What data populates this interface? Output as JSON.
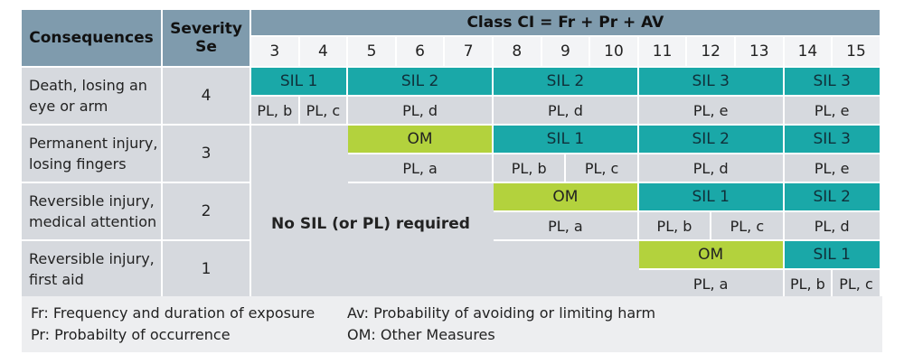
{
  "header": {
    "consequences": "Consequences",
    "severity": "Severity Se",
    "class_title": "Class CI = Fr + Pr + AV",
    "class_numbers": [
      "3",
      "4",
      "5",
      "6",
      "7",
      "8",
      "9",
      "10",
      "11",
      "12",
      "13",
      "14",
      "15"
    ]
  },
  "rows": [
    {
      "consequence": "Death, losing an eye or arm",
      "severity": "4",
      "levels": [
        {
          "from": 3,
          "to": 4,
          "label": "SIL 1",
          "kind": "SIL"
        },
        {
          "from": 5,
          "to": 7,
          "label": "SIL 2",
          "kind": "SIL"
        },
        {
          "from": 8,
          "to": 10,
          "label": "SIL 2",
          "kind": "SIL"
        },
        {
          "from": 11,
          "to": 13,
          "label": "SIL 3",
          "kind": "SIL"
        },
        {
          "from": 14,
          "to": 15,
          "label": "SIL 3",
          "kind": "SIL"
        }
      ],
      "pl": [
        {
          "from": 3,
          "to": 3,
          "label": "PL, b"
        },
        {
          "from": 4,
          "to": 4,
          "label": "PL, c"
        },
        {
          "from": 5,
          "to": 7,
          "label": "PL, d"
        },
        {
          "from": 8,
          "to": 10,
          "label": "PL, d"
        },
        {
          "from": 11,
          "to": 13,
          "label": "PL, e"
        },
        {
          "from": 14,
          "to": 15,
          "label": "PL, e"
        }
      ]
    },
    {
      "consequence": "Permanent injury, losing fingers",
      "severity": "3",
      "levels": [
        {
          "from": 5,
          "to": 7,
          "label": "OM",
          "kind": "OM"
        },
        {
          "from": 8,
          "to": 10,
          "label": "SIL 1",
          "kind": "SIL"
        },
        {
          "from": 11,
          "to": 13,
          "label": "SIL 2",
          "kind": "SIL"
        },
        {
          "from": 14,
          "to": 15,
          "label": "SIL 3",
          "kind": "SIL"
        }
      ],
      "pl": [
        {
          "from": 5,
          "to": 7,
          "label": "PL, a"
        },
        {
          "from": 8,
          "to": 9,
          "label": "PL, b"
        },
        {
          "from": 9,
          "to": 10,
          "label": "PL, c"
        },
        {
          "from": 11,
          "to": 13,
          "label": "PL, d"
        },
        {
          "from": 14,
          "to": 15,
          "label": "PL, e"
        }
      ]
    },
    {
      "consequence": "Reversible injury, medical attention",
      "severity": "2",
      "levels": [
        {
          "from": 8,
          "to": 10,
          "label": "OM",
          "kind": "OM"
        },
        {
          "from": 11,
          "to": 13,
          "label": "SIL 1",
          "kind": "SIL"
        },
        {
          "from": 14,
          "to": 15,
          "label": "SIL 2",
          "kind": "SIL"
        }
      ],
      "pl": [
        {
          "from": 8,
          "to": 10,
          "label": "PL, a"
        },
        {
          "from": 11,
          "to": 12,
          "label": "PL, b"
        },
        {
          "from": 12,
          "to": 13,
          "label": "PL, c"
        },
        {
          "from": 14,
          "to": 15,
          "label": "PL, d"
        }
      ]
    },
    {
      "consequence": "Reversible injury, first aid",
      "severity": "1",
      "levels": [
        {
          "from": 11,
          "to": 13,
          "label": "OM",
          "kind": "OM"
        },
        {
          "from": 14,
          "to": 15,
          "label": "SIL 1",
          "kind": "SIL"
        }
      ],
      "pl": [
        {
          "from": 11,
          "to": 13,
          "label": "PL, a"
        },
        {
          "from": 14,
          "to": 14,
          "label": "PL, b"
        },
        {
          "from": 15,
          "to": 15,
          "label": "PL, c"
        }
      ]
    }
  ],
  "no_sil_text": "No SIL (or PL) required",
  "legend": {
    "fr": "Fr: Frequency and duration of exposure",
    "pr": "Pr: Probabilty of occurrence",
    "av": "Av: Probability of avoiding or limiting harm",
    "om": "OM: Other Measures"
  },
  "colors": {
    "header": "#7f9bad",
    "sil": "#1aa8a8",
    "om": "#b3d23d",
    "pl": "#d6d9de"
  }
}
